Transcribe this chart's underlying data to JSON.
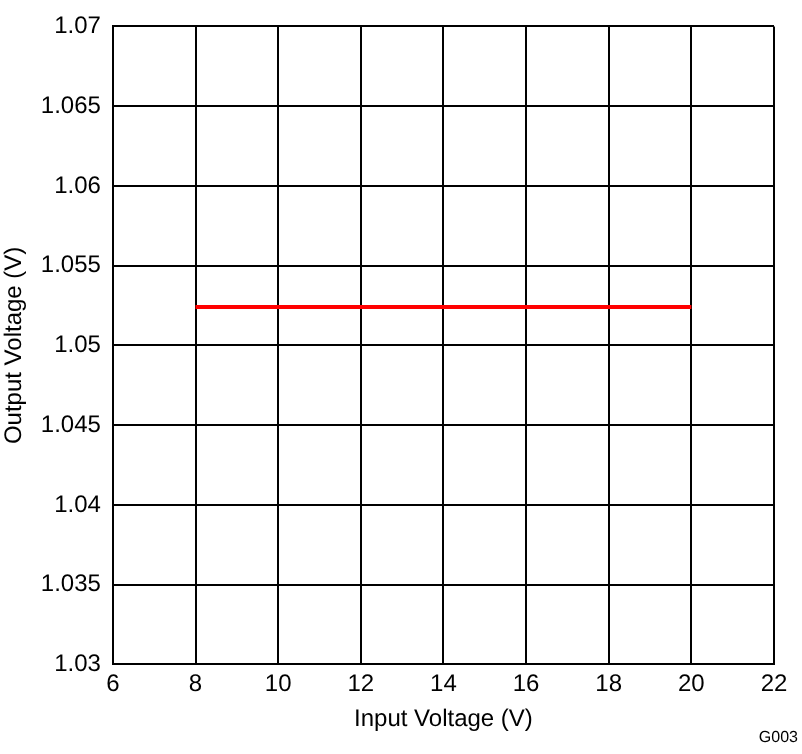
{
  "chart_data": {
    "type": "line",
    "xlabel": "Input Voltage (V)",
    "ylabel": "Output Voltage (V)",
    "annotations": [
      "G003"
    ],
    "x": [
      8,
      20
    ],
    "series": [
      {
        "color": "#ff0000",
        "values": [
          1.0524,
          1.0524
        ]
      }
    ],
    "xlim": [
      6,
      22
    ],
    "xticks": [
      6,
      8,
      10,
      12,
      14,
      16,
      18,
      20,
      22
    ],
    "ylim": [
      1.03,
      1.07
    ],
    "yticks": [
      1.03,
      1.035,
      1.04,
      1.045,
      1.05,
      1.055,
      1.06,
      1.065,
      1.07
    ],
    "grid": true,
    "legend": false,
    "marker": "none",
    "line_style": "solid"
  }
}
